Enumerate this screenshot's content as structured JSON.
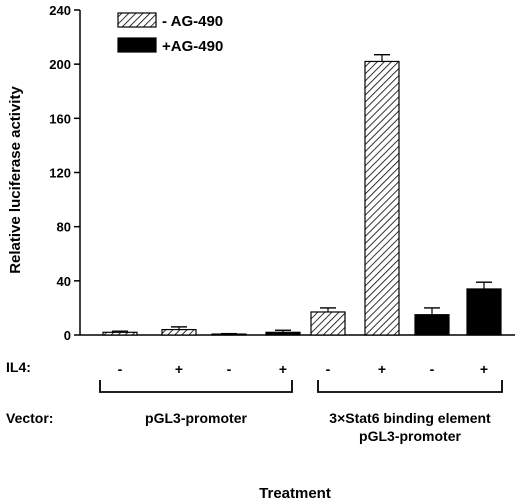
{
  "chart_data": {
    "type": "bar",
    "ylabel": "Relative luciferase activity",
    "xlabel": "Treatment",
    "ylim": [
      0,
      240
    ],
    "yticks": [
      0,
      40,
      80,
      120,
      160,
      200,
      240
    ],
    "legend": {
      "placement": "top-left",
      "entries": [
        {
          "label": "- AG-490",
          "pattern": "hatched"
        },
        {
          "label": "+AG-490",
          "pattern": "solid-black"
        }
      ]
    },
    "il4_row_label": "IL4:",
    "vector_row_label": "Vector:",
    "vector_groups": [
      {
        "lines": [
          "pGL3-promoter"
        ]
      },
      {
        "lines": [
          "3×Stat6 binding element",
          "pGL3-promoter"
        ]
      }
    ],
    "bars": [
      {
        "il4": "-",
        "series": "- AG-490",
        "value": 2,
        "error": 0.8
      },
      {
        "il4": "+",
        "series": "- AG-490",
        "value": 4,
        "error": 2
      },
      {
        "il4": "-",
        "series": "+AG-490",
        "value": 0.7,
        "error": 0.3
      },
      {
        "il4": "+",
        "series": "+AG-490",
        "value": 2,
        "error": 1.5
      },
      {
        "il4": "-",
        "series": "- AG-490",
        "value": 17,
        "error": 3
      },
      {
        "il4": "+",
        "series": "- AG-490",
        "value": 202,
        "error": 5
      },
      {
        "il4": "-",
        "series": "+AG-490",
        "value": 15,
        "error": 5
      },
      {
        "il4": "+",
        "series": "+AG-490",
        "value": 34,
        "error": 5
      }
    ]
  }
}
